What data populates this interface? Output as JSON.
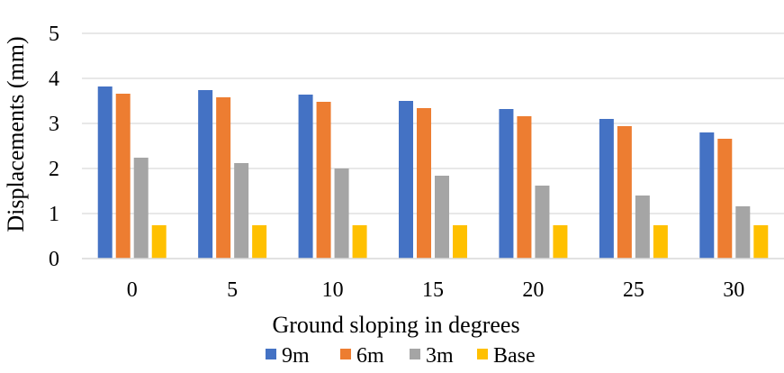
{
  "chart_data": {
    "type": "bar",
    "title": "",
    "xlabel": "Ground sloping in degrees",
    "ylabel": "Displacements (mm)",
    "ylim": [
      0,
      5
    ],
    "yticks": [
      "0",
      "1",
      "2",
      "3",
      "4",
      "5"
    ],
    "categories": [
      "0",
      "5",
      "10",
      "15",
      "20",
      "25",
      "30"
    ],
    "grid": true,
    "legend_position": "bottom",
    "series": [
      {
        "name": "9m",
        "color": "#4472C4",
        "values": [
          3.82,
          3.74,
          3.64,
          3.5,
          3.32,
          3.1,
          2.8
        ]
      },
      {
        "name": "6m",
        "color": "#ED7D31",
        "values": [
          3.66,
          3.58,
          3.48,
          3.34,
          3.16,
          2.94,
          2.66
        ]
      },
      {
        "name": "3m",
        "color": "#A5A5A5",
        "values": [
          2.24,
          2.12,
          2.0,
          1.84,
          1.62,
          1.4,
          1.16
        ]
      },
      {
        "name": "Base",
        "color": "#FFC000",
        "values": [
          0.74,
          0.74,
          0.74,
          0.74,
          0.74,
          0.74,
          0.74
        ]
      }
    ]
  }
}
